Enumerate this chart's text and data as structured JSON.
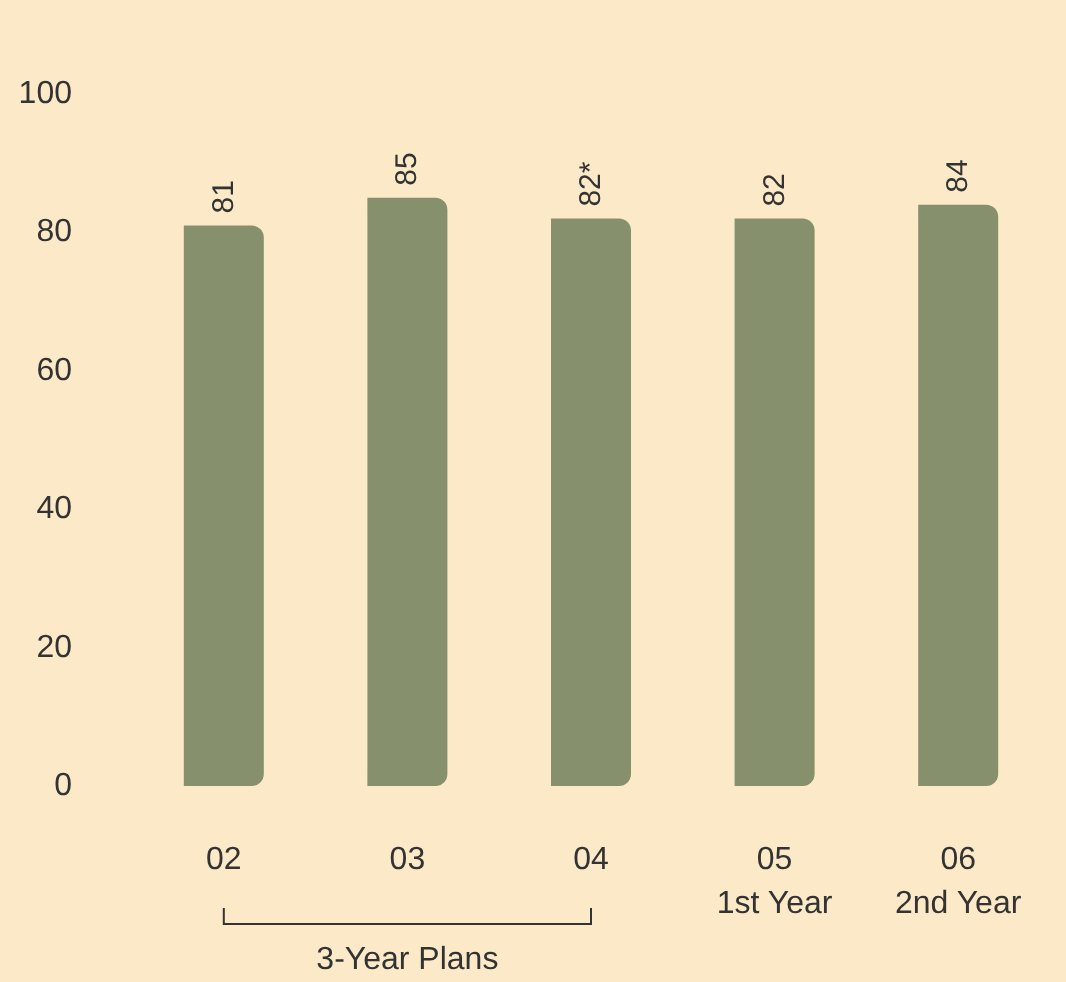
{
  "chart_data": {
    "type": "bar",
    "categories": [
      "02",
      "03",
      "04",
      "05\n1st Year",
      "06\n2nd Year"
    ],
    "values": [
      81,
      85,
      82,
      82,
      84
    ],
    "value_labels": [
      "81",
      "85",
      "82*",
      "82",
      "84"
    ],
    "color": "#87906c",
    "ylim": [
      0,
      100
    ],
    "yticks": [
      0,
      20,
      40,
      60,
      80,
      100
    ],
    "grid": false,
    "annotations": [
      "3-Year Plans"
    ]
  }
}
